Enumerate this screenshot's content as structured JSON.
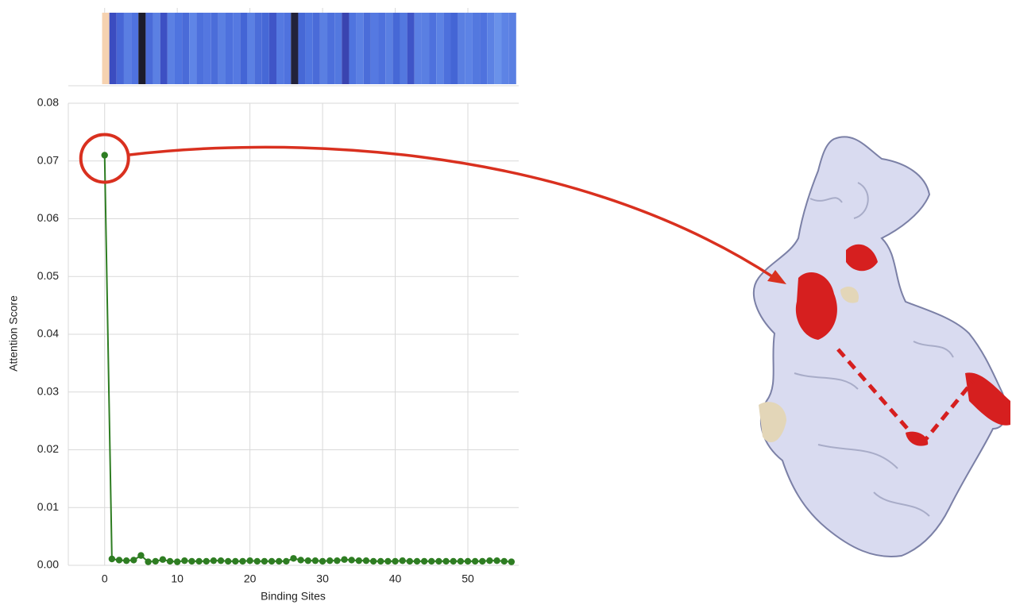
{
  "chart_data": {
    "type": "line",
    "x_label": "Binding Sites",
    "y_label": "Attention Score",
    "x": [
      0,
      1,
      2,
      3,
      4,
      5,
      6,
      7,
      8,
      9,
      10,
      11,
      12,
      13,
      14,
      15,
      16,
      17,
      18,
      19,
      20,
      21,
      22,
      23,
      24,
      25,
      26,
      27,
      28,
      29,
      30,
      31,
      32,
      33,
      34,
      35,
      36,
      37,
      38,
      39,
      40,
      41,
      42,
      43,
      44,
      45,
      46,
      47,
      48,
      49,
      50,
      51,
      52,
      53,
      54,
      55,
      56
    ],
    "series": [
      {
        "color": "#2e7d22",
        "values": [
          0.071,
          0.0011,
          0.0009,
          0.0008,
          0.0009,
          0.0017,
          0.0006,
          0.0007,
          0.001,
          0.0007,
          0.0006,
          0.0008,
          0.0007,
          0.0007,
          0.0007,
          0.0008,
          0.0008,
          0.0007,
          0.0007,
          0.0007,
          0.0008,
          0.0007,
          0.0007,
          0.0007,
          0.0007,
          0.0007,
          0.0012,
          0.0009,
          0.0008,
          0.0008,
          0.0007,
          0.0008,
          0.0008,
          0.001,
          0.0009,
          0.0008,
          0.0008,
          0.0007,
          0.0007,
          0.0007,
          0.0007,
          0.0008,
          0.0007,
          0.0007,
          0.0007,
          0.0007,
          0.0007,
          0.0007,
          0.0007,
          0.0007,
          0.0007,
          0.0007,
          0.0007,
          0.0008,
          0.0008,
          0.0007,
          0.0006
        ]
      }
    ],
    "heatmap_colors": [
      "#f6d2b0",
      "#3b4cc0",
      "#4766d6",
      "#5a7ee2",
      "#4f72de",
      "#1c1c2c",
      "#4a6bd8",
      "#5b80e3",
      "#3d50c3",
      "#5b80e3",
      "#4f74df",
      "#4a6bd8",
      "#5f85e6",
      "#4d70dc",
      "#5477e0",
      "#4b6dd9",
      "#5a7fe2",
      "#4e71dd",
      "#5579e1",
      "#4465d5",
      "#5b80e3",
      "#4b6dd9",
      "#4668d6",
      "#3f55c7",
      "#5579e1",
      "#4f72de",
      "#22223a",
      "#4668d6",
      "#5075df",
      "#4a6bd8",
      "#5a7fe2",
      "#4d70dc",
      "#5378df",
      "#3a44b0",
      "#4f74df",
      "#5b80e3",
      "#4b6dd9",
      "#5579e1",
      "#4e71dd",
      "#5a7fe2",
      "#4668d6",
      "#5378df",
      "#3f55c7",
      "#5b80e3",
      "#5a7fe2",
      "#4e71dd",
      "#5c82e4",
      "#4d70dc",
      "#4465d5",
      "#5a7fe2",
      "#5d83e5",
      "#5378df",
      "#4f72de",
      "#5c82e4",
      "#6a92ea",
      "#5d83e5",
      "#5a7fe2"
    ],
    "xlim": [
      -5,
      57
    ],
    "ylim": [
      0,
      0.08
    ],
    "xticks": [
      0,
      10,
      20,
      30,
      40,
      50
    ],
    "yticks": [
      {
        "value": 0,
        "label": "0.00"
      },
      0.01,
      0.02,
      0.03,
      0.04,
      0.05,
      0.06,
      0.07,
      0.08
    ],
    "grid": true
  }
}
